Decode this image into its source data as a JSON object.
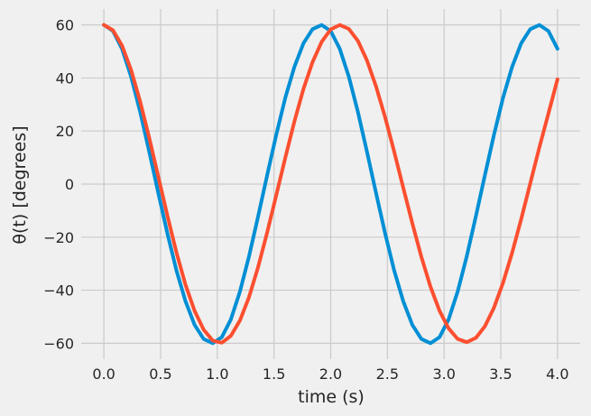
{
  "chart_data": {
    "type": "line",
    "title": "",
    "xlabel": "time (s)",
    "ylabel": "θ(t) [degrees]",
    "xlim": [
      -0.2,
      4.2
    ],
    "ylim": [
      -66,
      66
    ],
    "xticks": [
      0.0,
      0.5,
      1.0,
      1.5,
      2.0,
      2.5,
      3.0,
      3.5,
      4.0
    ],
    "xtick_labels": [
      "0.0",
      "0.5",
      "1.0",
      "1.5",
      "2.0",
      "2.5",
      "3.0",
      "3.5",
      "4.0"
    ],
    "yticks": [
      -60,
      -40,
      -20,
      0,
      20,
      40,
      60
    ],
    "ytick_labels": [
      "−60",
      "−40",
      "−20",
      "0",
      "20",
      "40",
      "60"
    ],
    "grid": true,
    "x": [
      0.0,
      0.08,
      0.16,
      0.24,
      0.32,
      0.4,
      0.48,
      0.56,
      0.64,
      0.72,
      0.8,
      0.88,
      0.96,
      1.04,
      1.12,
      1.2,
      1.28,
      1.36,
      1.44,
      1.52,
      1.6,
      1.68,
      1.76,
      1.84,
      1.92,
      2.0,
      2.08,
      2.16,
      2.24,
      2.32,
      2.4,
      2.48,
      2.56,
      2.64,
      2.72,
      2.8,
      2.88,
      2.96,
      3.04,
      3.12,
      3.2,
      3.28,
      3.36,
      3.44,
      3.52,
      3.6,
      3.68,
      3.76,
      3.84,
      3.92,
      4.0
    ],
    "series": [
      {
        "color": "#008fd5",
        "values": [
          60.0,
          57.7,
          51.0,
          40.5,
          27.2,
          12.2,
          -3.4,
          -18.6,
          -32.6,
          -44.2,
          -53.1,
          -58.4,
          -60.0,
          -57.7,
          -51.0,
          -40.5,
          -27.2,
          -12.2,
          3.4,
          18.6,
          32.6,
          44.2,
          53.1,
          58.4,
          60.0,
          57.7,
          51.0,
          40.5,
          27.2,
          12.2,
          -3.4,
          -18.6,
          -32.6,
          -44.2,
          -53.1,
          -58.4,
          -60.0,
          -57.7,
          -51.0,
          -40.5,
          -27.2,
          -12.2,
          3.4,
          18.6,
          32.6,
          44.2,
          53.1,
          58.4,
          60.0,
          57.7,
          51.0
        ]
      },
      {
        "color": "#fc4f30",
        "values": [
          60.0,
          58.0,
          52.2,
          43.0,
          31.1,
          17.4,
          2.8,
          -11.9,
          -25.8,
          -38.0,
          -47.8,
          -54.9,
          -59.0,
          -59.8,
          -57.2,
          -51.4,
          -42.6,
          -31.3,
          -18.2,
          -4.2,
          10.0,
          23.6,
          35.9,
          46.0,
          53.6,
          58.3,
          60.0,
          58.5,
          54.0,
          46.6,
          36.8,
          25.2,
          12.2,
          -1.4,
          -14.8,
          -27.5,
          -38.7,
          -47.8,
          -54.4,
          -58.4,
          -59.6,
          -58.0,
          -53.6,
          -46.6,
          -37.2,
          -25.9,
          -13.2,
          0.3,
          13.8,
          26.6,
          39.5
        ]
      }
    ]
  }
}
